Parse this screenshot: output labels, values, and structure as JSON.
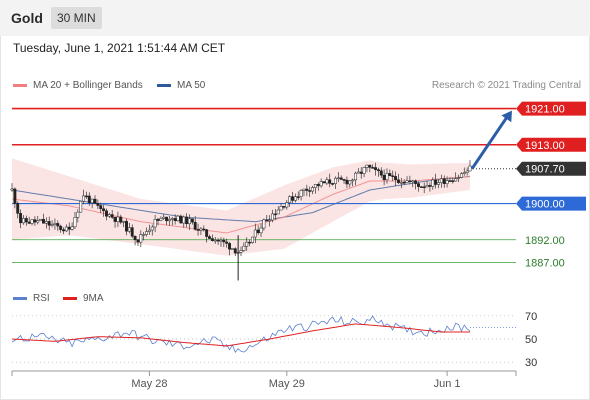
{
  "header": {
    "title": "Gold",
    "timeframe": "30 MIN"
  },
  "datetime": "Tuesday, June 1, 2021 1:51:44 AM CET",
  "legend": {
    "ma20": {
      "label": "MA 20 + Bollinger Bands",
      "color": "#f08080"
    },
    "ma50": {
      "label": "MA 50",
      "color": "#2e5a9a"
    },
    "rsi": {
      "label": "RSI",
      "color": "#5a80d0"
    },
    "ma9": {
      "label": "9MA",
      "color": "#e02020"
    }
  },
  "credit": "Research © 2021 Trading Central",
  "colors": {
    "resistance": "#e02020",
    "pivot": "#2d6ad8",
    "support": "#3aa03a",
    "current": "#333333",
    "arrow": "#2c5ea8"
  },
  "chart_data": [
    {
      "type": "candlestick",
      "x_tick_labels": [
        "May 28",
        "May 29",
        "Jun 1"
      ],
      "ylim": [
        1882,
        1924
      ],
      "levels": [
        {
          "value": 1921.0,
          "label": "1921.00",
          "kind": "resistance"
        },
        {
          "value": 1913.0,
          "label": "1913.00",
          "kind": "resistance"
        },
        {
          "value": 1907.7,
          "label": "1907.70",
          "kind": "current"
        },
        {
          "value": 1900.0,
          "label": "1900.00",
          "kind": "pivot"
        },
        {
          "value": 1892.0,
          "label": "1892.00",
          "kind": "support"
        },
        {
          "value": 1887.0,
          "label": "1887.00",
          "kind": "support"
        }
      ],
      "anchors": [
        [
          0,
          1903
        ],
        [
          3,
          1896
        ],
        [
          10,
          1896
        ],
        [
          20,
          1894
        ],
        [
          25,
          1902
        ],
        [
          30,
          1899
        ],
        [
          38,
          1896
        ],
        [
          44,
          1892
        ],
        [
          50,
          1896
        ],
        [
          55,
          1897
        ],
        [
          62,
          1896
        ],
        [
          68,
          1893
        ],
        [
          75,
          1891
        ],
        [
          80,
          1889
        ],
        [
          88,
          1896
        ],
        [
          95,
          1900
        ],
        [
          102,
          1903
        ],
        [
          106,
          1904
        ],
        [
          112,
          1905
        ],
        [
          118,
          1905
        ],
        [
          124,
          1908
        ],
        [
          130,
          1906
        ],
        [
          138,
          1905
        ],
        [
          143,
          1904
        ],
        [
          150,
          1905
        ],
        [
          156,
          1906
        ],
        [
          160,
          1907.7
        ]
      ],
      "ma20_anchors": [
        [
          0,
          1901
        ],
        [
          20,
          1899.5
        ],
        [
          45,
          1896
        ],
        [
          75,
          1893.5
        ],
        [
          95,
          1897
        ],
        [
          112,
          1902
        ],
        [
          125,
          1905
        ],
        [
          140,
          1905
        ],
        [
          160,
          1906
        ]
      ],
      "ma50_anchors": [
        [
          0,
          1903
        ],
        [
          30,
          1900
        ],
        [
          60,
          1897
        ],
        [
          85,
          1896
        ],
        [
          105,
          1898
        ],
        [
          125,
          1903
        ],
        [
          145,
          1905
        ],
        [
          160,
          1906
        ]
      ],
      "band_width_anchors": [
        [
          0,
          9
        ],
        [
          20,
          6.5
        ],
        [
          45,
          5
        ],
        [
          75,
          5
        ],
        [
          95,
          7
        ],
        [
          112,
          6
        ],
        [
          130,
          4
        ],
        [
          160,
          3
        ]
      ],
      "forecast_target": 1921.0
    },
    {
      "type": "line",
      "title": "RSI",
      "levels": [
        70,
        50,
        30
      ],
      "ylim": [
        25,
        75
      ],
      "rsi_anchors": [
        [
          0,
          50
        ],
        [
          10,
          52
        ],
        [
          20,
          46
        ],
        [
          30,
          50
        ],
        [
          40,
          56
        ],
        [
          50,
          48
        ],
        [
          60,
          44
        ],
        [
          70,
          49
        ],
        [
          78,
          40
        ],
        [
          85,
          45
        ],
        [
          95,
          58
        ],
        [
          105,
          62
        ],
        [
          112,
          66
        ],
        [
          120,
          64
        ],
        [
          128,
          67
        ],
        [
          136,
          58
        ],
        [
          145,
          56
        ],
        [
          152,
          60
        ],
        [
          160,
          60
        ]
      ],
      "ma9_anchors": [
        [
          0,
          50
        ],
        [
          15,
          48
        ],
        [
          30,
          52
        ],
        [
          45,
          51
        ],
        [
          60,
          47
        ],
        [
          75,
          44
        ],
        [
          90,
          50
        ],
        [
          105,
          57
        ],
        [
          120,
          63
        ],
        [
          135,
          60
        ],
        [
          150,
          56
        ],
        [
          160,
          56
        ]
      ]
    }
  ]
}
